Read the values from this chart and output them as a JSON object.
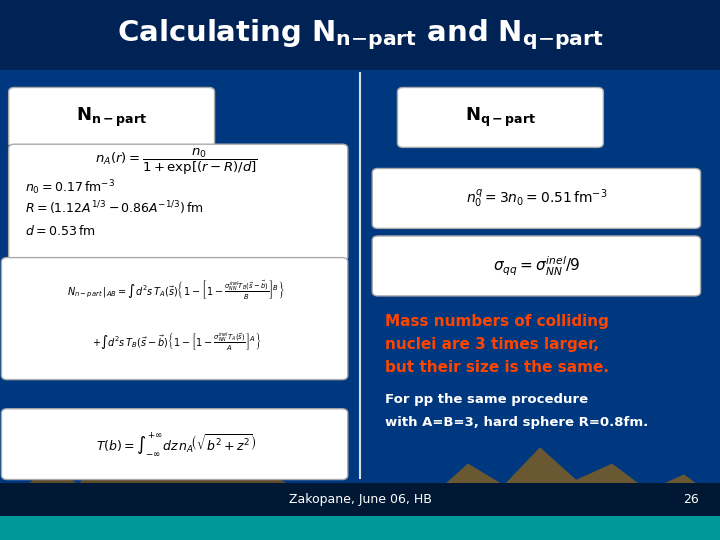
{
  "bg_color": "#003880",
  "title_bg_color": "#002255",
  "footer_text": "Zakopane, June 06, HB",
  "footer_page": "26",
  "red_text_line1": "Mass numbers of colliding",
  "red_text_line2": "nuclei are 3 times larger,",
  "red_text_line3": "but their size is the same.",
  "white_text_line1": "For pp the same procedure",
  "white_text_line2": "with A=B=3, hard sphere R=0.8fm."
}
